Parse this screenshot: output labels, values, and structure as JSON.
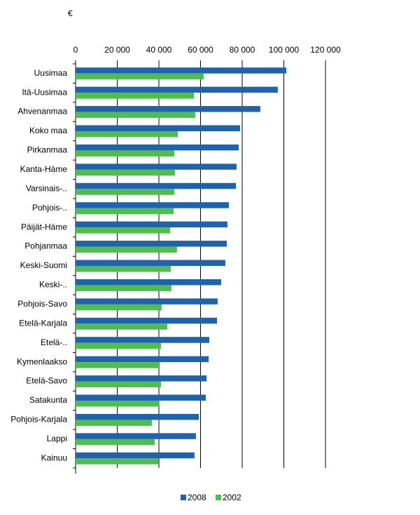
{
  "chart_data": {
    "type": "hbar",
    "unit": "€",
    "categories": [
      "Uusimaa",
      "Itä-Uusimaa",
      "Ahvenanmaa",
      "Koko maa",
      "Pirkanmaa",
      "Kanta-Häme",
      "Varsinais-..",
      "Pohjois-..",
      "Päijät-Häme",
      "Pohjanmaa",
      "Keski-Suomi",
      "Keski-..",
      "Pohjois-Savo",
      "Etelä-Karjala",
      "Etelä-..",
      "Kymenlaakso",
      "Etelä-Savo",
      "Satakunta",
      "Pohjois-Karjala",
      "Lappi",
      "Kainuu"
    ],
    "series": [
      {
        "name": "2008",
        "color": "#2063ad",
        "values": [
          101200,
          97100,
          88700,
          79000,
          78300,
          77300,
          77000,
          73600,
          72900,
          72600,
          71900,
          69900,
          68200,
          67900,
          64200,
          63900,
          62900,
          62500,
          59200,
          57800,
          57100
        ]
      },
      {
        "name": "2002",
        "color": "#4fbe4f",
        "values": [
          61500,
          56800,
          57500,
          49100,
          47400,
          47700,
          47400,
          47100,
          45400,
          48700,
          45700,
          46000,
          41300,
          44000,
          41000,
          40000,
          41000,
          40300,
          36600,
          38000,
          39700
        ]
      }
    ],
    "xlim": [
      0,
      120000
    ],
    "xticks": [
      0,
      {
        "value": 20000,
        "label": "20 000"
      },
      {
        "value": 40000,
        "label": "40 000"
      },
      {
        "value": 60000,
        "label": "60 000"
      },
      {
        "value": 80000,
        "label": "80 000"
      },
      {
        "value": 100000,
        "label": "100 000"
      },
      {
        "value": 120000,
        "label": "120 000"
      }
    ],
    "grid": true,
    "legend": "bottom"
  }
}
